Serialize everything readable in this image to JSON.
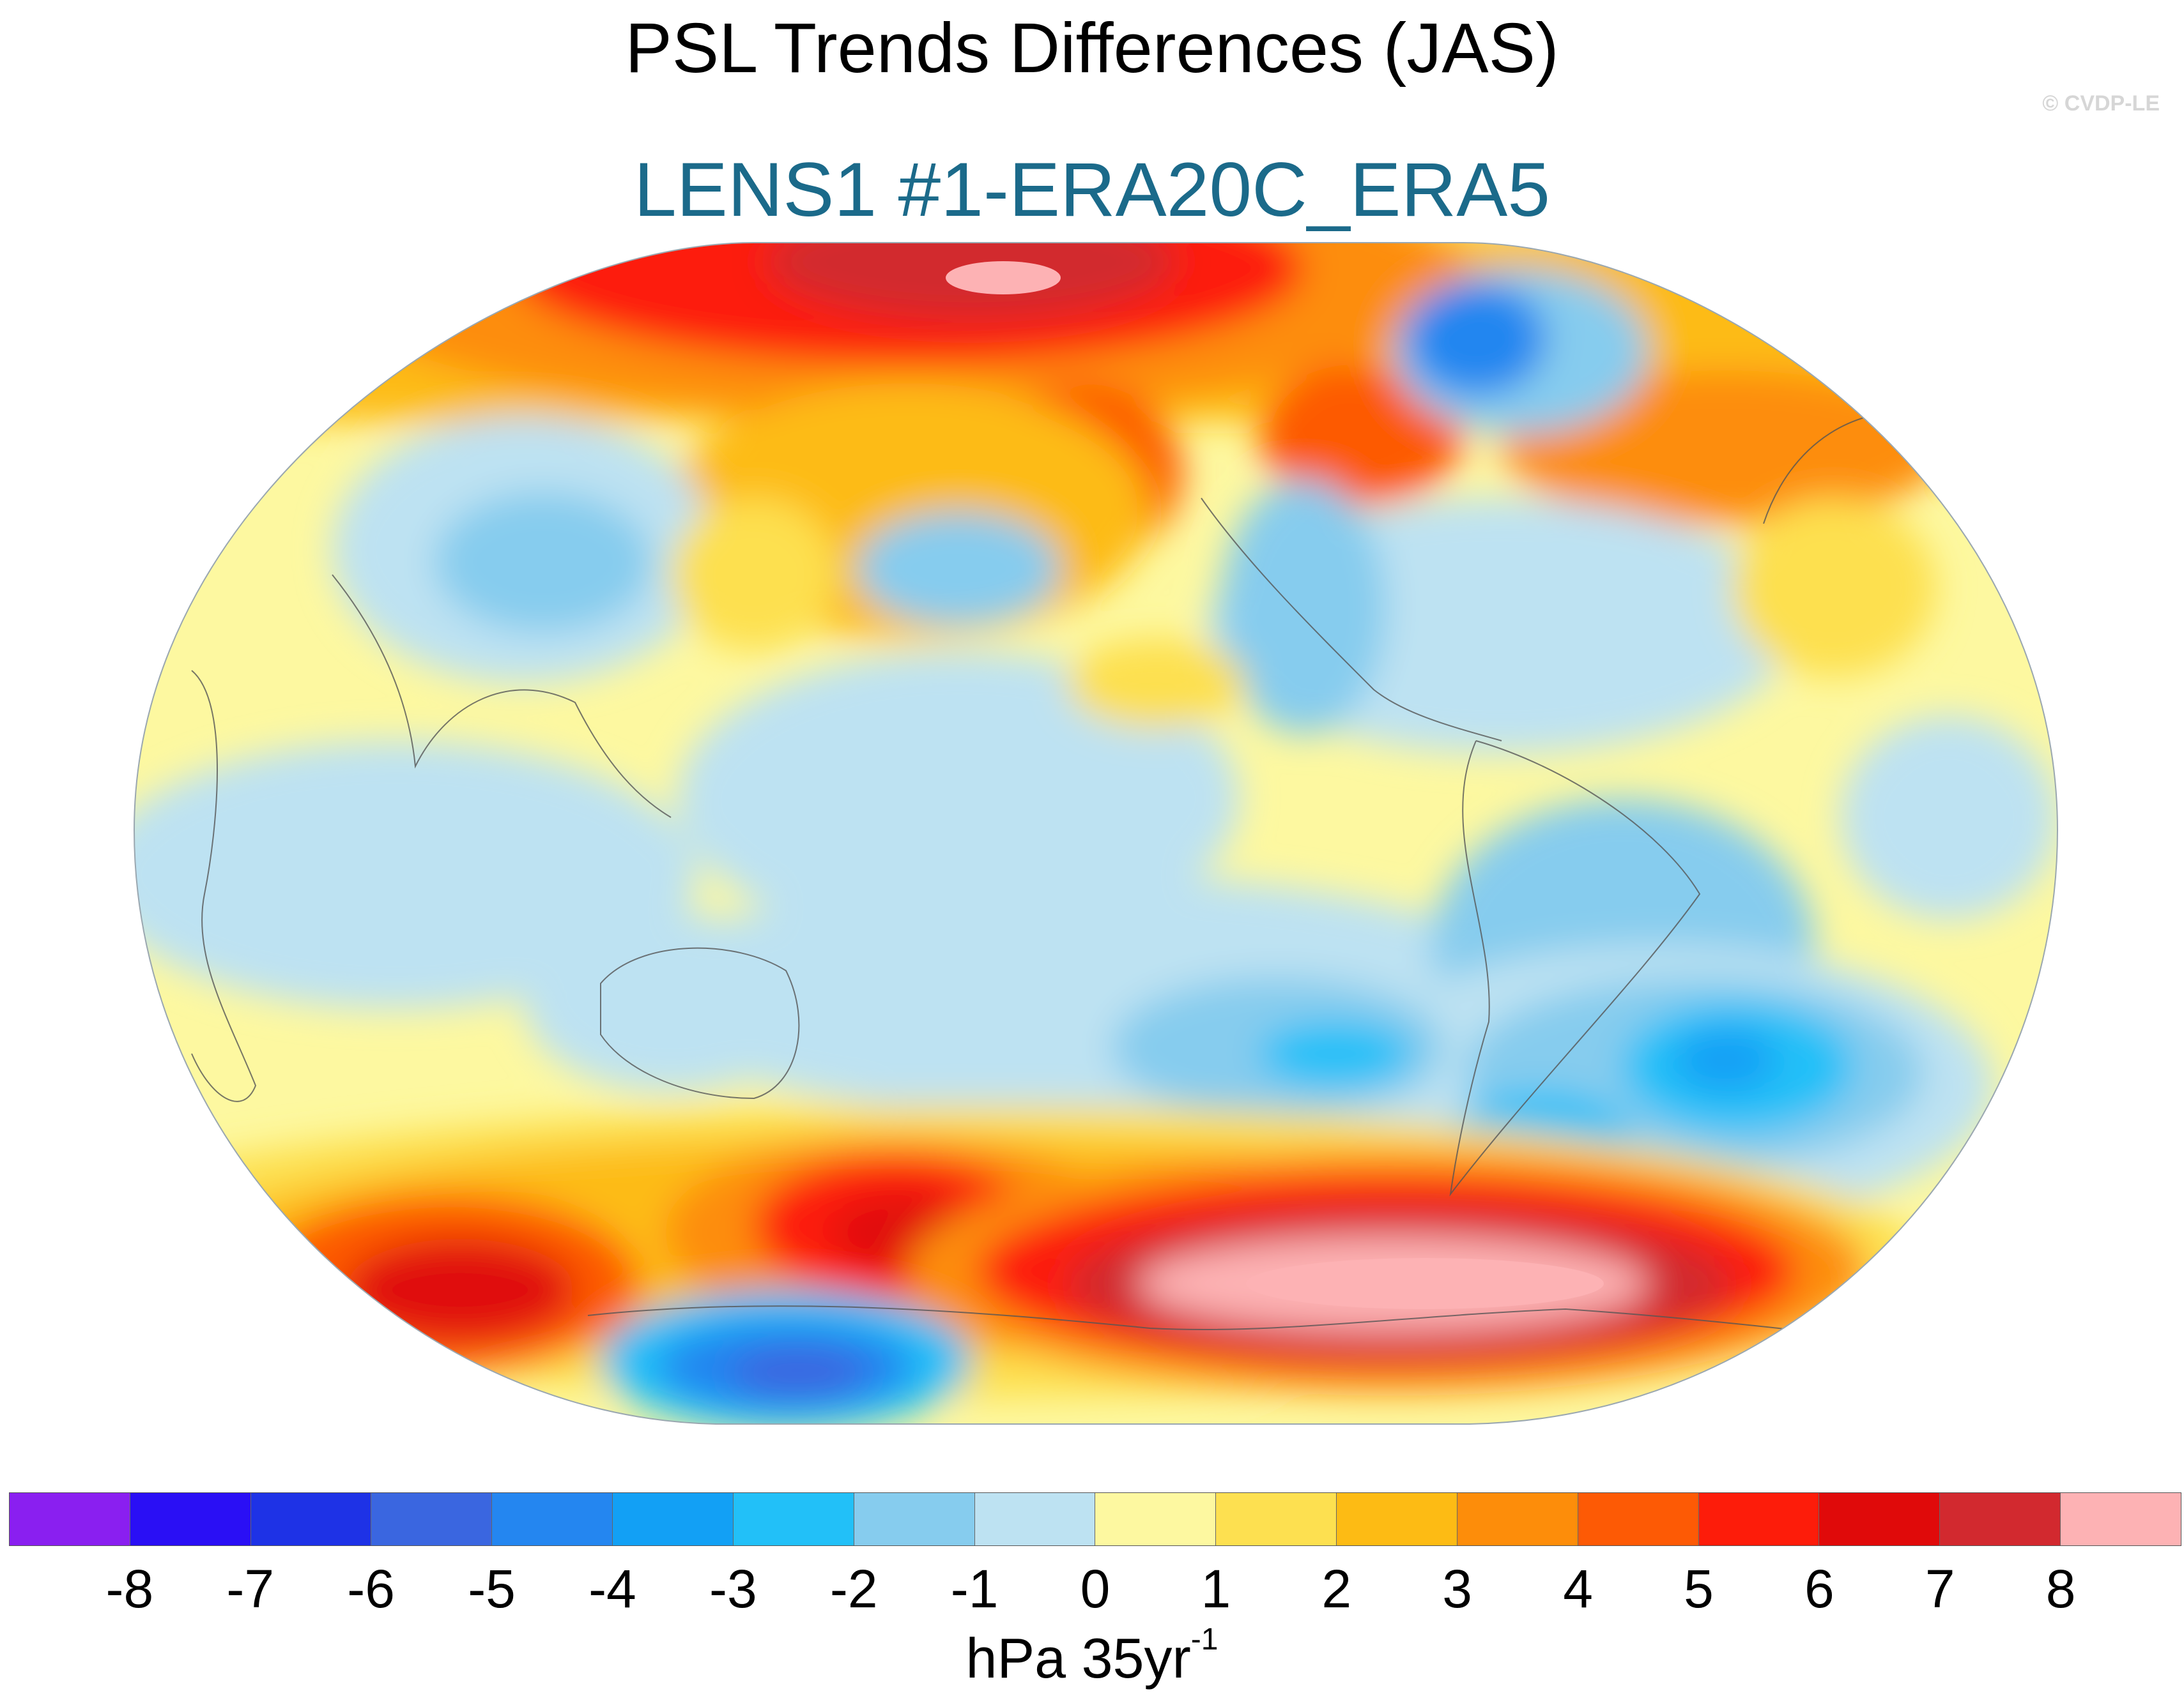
{
  "title": "PSL Trends Differences (JAS)",
  "subtitle": "LENS1 #1-ERA20C_ERA5",
  "copyright": "© CVDP-LE",
  "colorbar": {
    "ticks": [
      "-8",
      "-7",
      "-6",
      "-5",
      "-4",
      "-3",
      "-2",
      "-1",
      "0",
      "1",
      "2",
      "3",
      "4",
      "5",
      "6",
      "7",
      "8"
    ],
    "colors": [
      "#8a1ff0",
      "#2a0ff5",
      "#1e32e6",
      "#3a66e0",
      "#2486f0",
      "#12a0f5",
      "#22c0f8",
      "#86ccee",
      "#bde2f2",
      "#fdf8a0",
      "#fde050",
      "#fdbb14",
      "#fd8d0a",
      "#fd5a05",
      "#fd1c0a",
      "#e00a0a",
      "#d2292f",
      "#fdb2b4"
    ],
    "units_main": "hPa 35yr",
    "units_exp": "-1"
  }
}
